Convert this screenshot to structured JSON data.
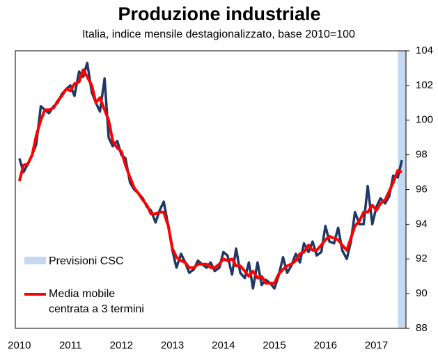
{
  "chart_data": {
    "type": "line",
    "title": "Produzione industriale",
    "subtitle": "Italia, indice mensile destagionalizzato,  base 2010=100",
    "forecast_label": "Previsioni CSC",
    "forecast_range": [
      2017.42,
      2017.58
    ],
    "forecast_color": "#c6d9f1",
    "xlim": [
      2009.92,
      2017.58
    ],
    "xticks": [
      2010,
      2011,
      2012,
      2013,
      2014,
      2015,
      2016,
      2017
    ],
    "ylim": [
      88,
      104
    ],
    "yticks": [
      88,
      90,
      92,
      94,
      96,
      98,
      100,
      102,
      104
    ],
    "y_axis_side": "right",
    "x": [
      2010,
      2010.08,
      2010.17,
      2010.25,
      2010.33,
      2010.42,
      2010.5,
      2010.58,
      2010.67,
      2010.75,
      2010.83,
      2010.92,
      2011,
      2011.08,
      2011.17,
      2011.25,
      2011.33,
      2011.42,
      2011.5,
      2011.58,
      2011.67,
      2011.75,
      2011.83,
      2011.92,
      2012,
      2012.08,
      2012.17,
      2012.25,
      2012.33,
      2012.42,
      2012.5,
      2012.58,
      2012.67,
      2012.75,
      2012.83,
      2012.92,
      2013,
      2013.08,
      2013.17,
      2013.25,
      2013.33,
      2013.42,
      2013.5,
      2013.58,
      2013.67,
      2013.75,
      2013.83,
      2013.92,
      2014,
      2014.08,
      2014.17,
      2014.25,
      2014.33,
      2014.42,
      2014.5,
      2014.58,
      2014.67,
      2014.75,
      2014.83,
      2014.92,
      2015,
      2015.08,
      2015.17,
      2015.25,
      2015.33,
      2015.42,
      2015.5,
      2015.58,
      2015.67,
      2015.75,
      2015.83,
      2015.92,
      2016,
      2016.08,
      2016.17,
      2016.25,
      2016.33,
      2016.42,
      2016.5,
      2016.58,
      2016.67,
      2016.75,
      2016.83,
      2016.92,
      2017,
      2017.08,
      2017.17,
      2017.25,
      2017.33,
      2017.42,
      2017.5
    ],
    "series": [
      {
        "color": "#1f3864",
        "width": 3.5,
        "values": [
          97.8,
          97.0,
          97.5,
          98.0,
          98.6,
          100.8,
          100.6,
          100.4,
          100.8,
          101.0,
          101.5,
          101.8,
          102.0,
          101.4,
          102.8,
          102.5,
          103.3,
          101.6,
          101.0,
          100.5,
          102.4,
          99.0,
          98.5,
          98.8,
          98.0,
          97.8,
          96.4,
          96.0,
          95.8,
          95.5,
          95.0,
          94.8,
          94.1,
          94.8,
          95.3,
          93.9,
          92.5,
          91.5,
          92.3,
          91.8,
          91.2,
          91.4,
          91.9,
          91.7,
          91.5,
          91.8,
          91.3,
          91.5,
          92.4,
          92.2,
          91.1,
          92.6,
          91.2,
          90.9,
          91.8,
          90.3,
          91.8,
          90.5,
          90.8,
          90.6,
          90.3,
          91.0,
          92.1,
          91.2,
          91.6,
          92.3,
          91.8,
          92.9,
          92.4,
          93.0,
          92.2,
          92.4,
          93.9,
          93.0,
          92.9,
          93.8,
          92.5,
          92.0,
          93.0,
          94.7,
          94.0,
          94.0,
          96.2,
          94.0,
          95.0,
          95.5,
          95.2,
          95.6,
          96.8,
          96.7,
          97.7
        ]
      },
      {
        "name": "Media mobile centrata a 3 termini",
        "color": "#ff0000",
        "width": 4,
        "values": [
          96.5,
          97.4,
          97.5,
          98.0,
          99.1,
          100.0,
          100.6,
          100.6,
          100.7,
          101.1,
          101.4,
          101.8,
          101.7,
          102.1,
          102.2,
          102.9,
          102.5,
          102.0,
          101.0,
          101.3,
          100.6,
          100.0,
          98.8,
          98.4,
          98.2,
          97.4,
          96.7,
          96.1,
          95.8,
          95.4,
          95.1,
          94.6,
          94.6,
          94.7,
          94.7,
          93.9,
          92.6,
          92.1,
          91.9,
          91.8,
          91.5,
          91.5,
          91.7,
          91.7,
          91.7,
          91.5,
          91.5,
          91.7,
          92.0,
          91.9,
          92.0,
          91.6,
          91.6,
          91.3,
          91.0,
          91.3,
          90.9,
          91.0,
          90.6,
          90.6,
          90.6,
          91.1,
          91.4,
          91.6,
          91.7,
          91.9,
          92.3,
          92.4,
          92.8,
          92.5,
          92.5,
          92.8,
          93.1,
          93.3,
          93.2,
          93.1,
          92.8,
          92.5,
          93.2,
          93.9,
          94.2,
          94.7,
          94.7,
          95.1,
          94.8,
          95.2,
          95.4,
          95.9,
          96.4,
          97.1,
          97.0
        ]
      }
    ]
  }
}
